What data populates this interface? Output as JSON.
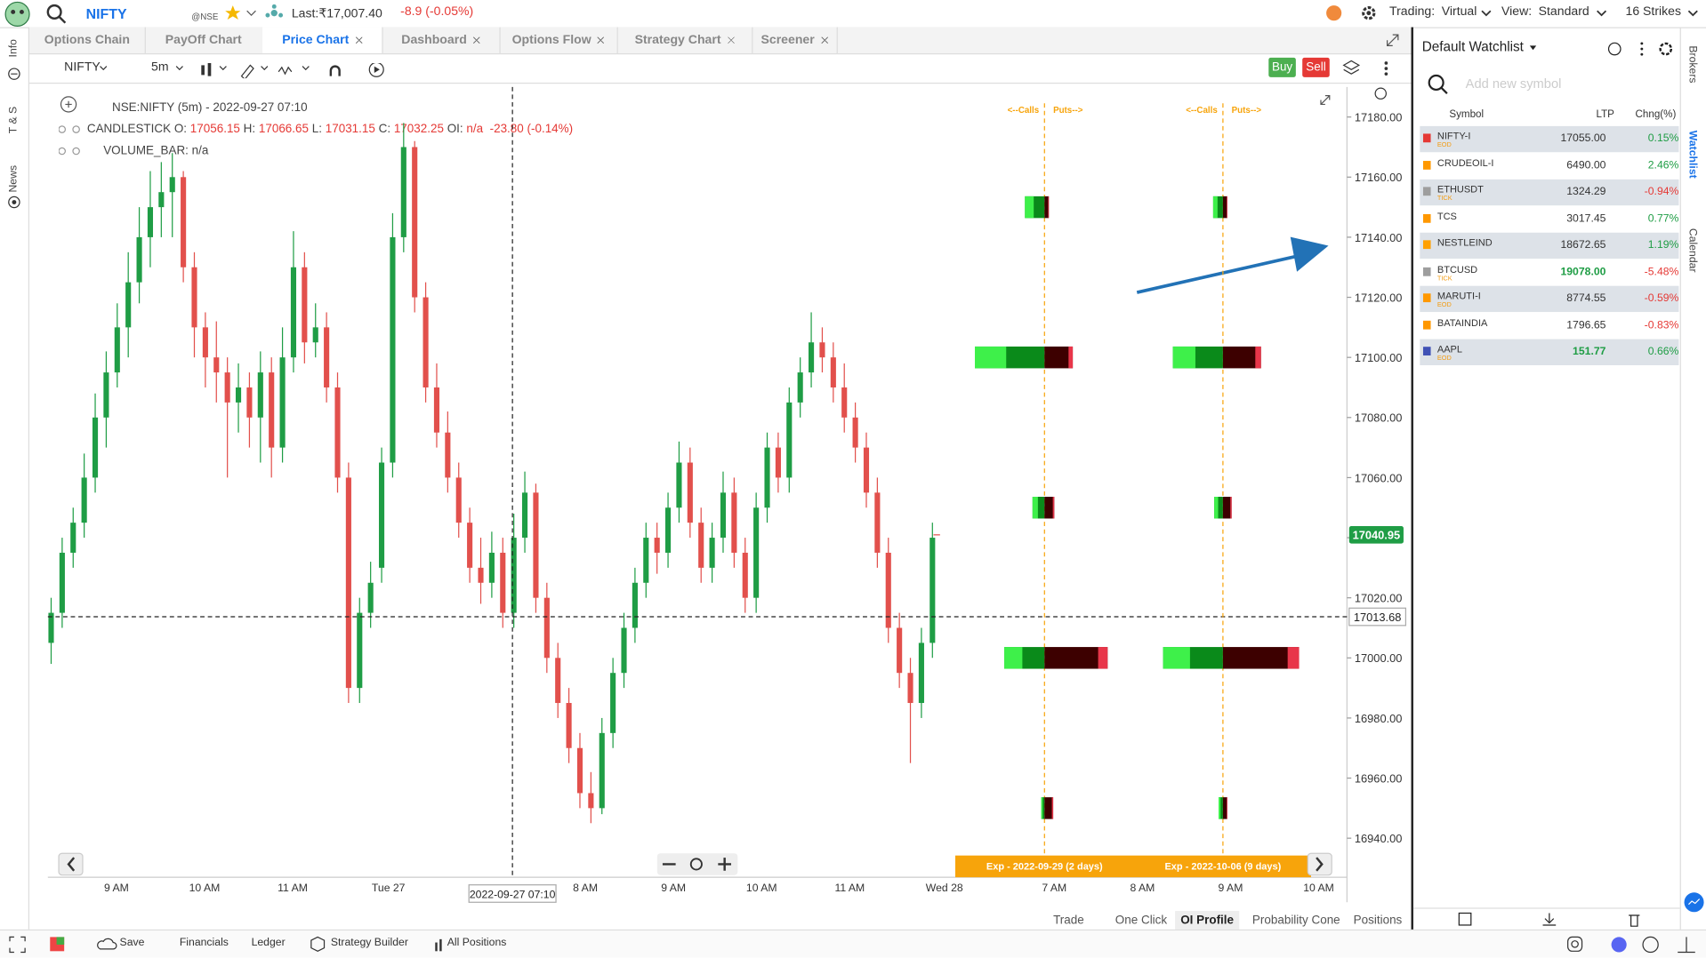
{
  "header": {
    "symbol": "NIFTY",
    "exchange": "@NSE",
    "last": "Last:₹17,007.40",
    "change": "-8.9 (-0.05%)",
    "trading_label": "Trading:",
    "trading": "Virtual",
    "view_label": "View:",
    "view": "Standard",
    "strikes": "16 Strikes"
  },
  "tabs": {
    "items": [
      "Options Chain",
      "PayOff Chart",
      "Price Chart",
      "Dashboard",
      "Options Flow",
      "Strategy Chart",
      "Screener"
    ],
    "active": 2
  },
  "left_sidebar": [
    "Info",
    "T & S",
    "News"
  ],
  "toolbar": {
    "symbol": "NIFTY",
    "interval": "5m",
    "buy": "Buy",
    "sell": "Sell"
  },
  "legend": {
    "title": "NSE:NIFTY (5m) - 2022-09-27 07:10",
    "series": "CANDLESTICK",
    "o_label": "O:",
    "o": "17056.15",
    "h_label": "H:",
    "h": "17066.65",
    "l_label": "L:",
    "l": "17031.15",
    "c_label": "C:",
    "c": "17032.25",
    "oi_label": "OI:",
    "oi": "n/a",
    "diff": "-23.80",
    "diff_pct": "(-0.14%)",
    "volume": "VOLUME_BAR:",
    "volume_value": "n/a"
  },
  "chart_data": {
    "type": "candlestick",
    "ylim": [
      16927,
      17190
    ],
    "yticks": [
      {
        "value": 17180,
        "label": "17180.00"
      },
      {
        "value": 17160,
        "label": "17160.00"
      },
      {
        "value": 17140,
        "label": "17140.00"
      },
      {
        "value": 17120,
        "label": "17120.00"
      },
      {
        "value": 17100,
        "label": "17100.00"
      },
      {
        "value": 17080,
        "label": "17080.00"
      },
      {
        "value": 17060,
        "label": "17060.00"
      },
      {
        "value": 17040,
        "label": "17040.00"
      },
      {
        "value": 17020,
        "label": "17020.00"
      },
      {
        "value": 17000,
        "label": "17000.00"
      },
      {
        "value": 16980,
        "label": "16980.00"
      },
      {
        "value": 16960,
        "label": "16960.00"
      },
      {
        "value": 16940,
        "label": "16940.00"
      }
    ],
    "xtick_labels": [
      "9 AM",
      "10 AM",
      "11 AM",
      "Tue 27",
      "8 AM",
      "9 AM",
      "10 AM",
      "11 AM",
      "Wed 28",
      "7 AM",
      "8 AM",
      "9 AM",
      "10 AM"
    ],
    "up_color": "#1f9d45",
    "down_color": "#e2504c",
    "last_price": {
      "value": 17040.95,
      "label": "17040.95"
    },
    "crosshair_price": {
      "value": 17013.68,
      "label": "17013.68"
    },
    "crosshair_time": "2022-09-27 07:10",
    "candles": [
      [
        17005,
        17020,
        16998,
        17015
      ],
      [
        17015,
        17040,
        17010,
        17035
      ],
      [
        17035,
        17050,
        17030,
        17045
      ],
      [
        17045,
        17068,
        17040,
        17060
      ],
      [
        17060,
        17088,
        17055,
        17080
      ],
      [
        17080,
        17102,
        17070,
        17095
      ],
      [
        17095,
        17118,
        17090,
        17110
      ],
      [
        17110,
        17135,
        17100,
        17125
      ],
      [
        17125,
        17150,
        17118,
        17140
      ],
      [
        17140,
        17162,
        17130,
        17150
      ],
      [
        17150,
        17165,
        17140,
        17155
      ],
      [
        17155,
        17168,
        17140,
        17160
      ],
      [
        17160,
        17162,
        17125,
        17130
      ],
      [
        17130,
        17135,
        17100,
        17110
      ],
      [
        17110,
        17115,
        17090,
        17100
      ],
      [
        17100,
        17112,
        17085,
        17095
      ],
      [
        17095,
        17100,
        17060,
        17085
      ],
      [
        17085,
        17098,
        17075,
        17090
      ],
      [
        17090,
        17095,
        17070,
        17080
      ],
      [
        17080,
        17102,
        17065,
        17095
      ],
      [
        17095,
        17100,
        17060,
        17070
      ],
      [
        17070,
        17110,
        17065,
        17100
      ],
      [
        17100,
        17142,
        17095,
        17130
      ],
      [
        17130,
        17135,
        17098,
        17105
      ],
      [
        17105,
        17118,
        17100,
        17110
      ],
      [
        17110,
        17115,
        17085,
        17090
      ],
      [
        17090,
        17095,
        17055,
        17060
      ],
      [
        17060,
        17065,
        16985,
        16990
      ],
      [
        16990,
        17020,
        16985,
        17015
      ],
      [
        17015,
        17032,
        17010,
        17025
      ],
      [
        17030,
        17070,
        17025,
        17065
      ],
      [
        17065,
        17148,
        17060,
        17140
      ],
      [
        17140,
        17178,
        17135,
        17170
      ],
      [
        17170,
        17172,
        17115,
        17120
      ],
      [
        17120,
        17125,
        17085,
        17090
      ],
      [
        17090,
        17098,
        17070,
        17075
      ],
      [
        17075,
        17082,
        17055,
        17060
      ],
      [
        17060,
        17065,
        17040,
        17045
      ],
      [
        17045,
        17050,
        17025,
        17030
      ],
      [
        17030,
        17040,
        17018,
        17025
      ],
      [
        17025,
        17042,
        17020,
        17035
      ],
      [
        17035,
        17040,
        17010,
        17015
      ],
      [
        17015,
        17048,
        17010,
        17040
      ],
      [
        17040,
        17062,
        17035,
        17055
      ],
      [
        17055,
        17058,
        17015,
        17020
      ],
      [
        17020,
        17025,
        16995,
        17000
      ],
      [
        17000,
        17005,
        16980,
        16985
      ],
      [
        16985,
        16990,
        16965,
        16970
      ],
      [
        16970,
        16975,
        16950,
        16955
      ],
      [
        16955,
        16962,
        16945,
        16950
      ],
      [
        16950,
        16980,
        16948,
        16975
      ],
      [
        16975,
        17000,
        16970,
        16995
      ],
      [
        16995,
        17015,
        16990,
        17010
      ],
      [
        17010,
        17030,
        17005,
        17025
      ],
      [
        17025,
        17045,
        17020,
        17040
      ],
      [
        17040,
        17045,
        17028,
        17035
      ],
      [
        17035,
        17055,
        17030,
        17050
      ],
      [
        17050,
        17072,
        17045,
        17065
      ],
      [
        17065,
        17070,
        17040,
        17045
      ],
      [
        17045,
        17050,
        17025,
        17030
      ],
      [
        17030,
        17045,
        17025,
        17040
      ],
      [
        17040,
        17062,
        17035,
        17055
      ],
      [
        17055,
        17060,
        17030,
        17035
      ],
      [
        17035,
        17040,
        17015,
        17020
      ],
      [
        17020,
        17055,
        17015,
        17050
      ],
      [
        17050,
        17075,
        17045,
        17070
      ],
      [
        17070,
        17075,
        17055,
        17060
      ],
      [
        17060,
        17090,
        17055,
        17085
      ],
      [
        17085,
        17100,
        17080,
        17095
      ],
      [
        17095,
        17115,
        17090,
        17105
      ],
      [
        17105,
        17110,
        17095,
        17100
      ],
      [
        17100,
        17105,
        17085,
        17090
      ],
      [
        17090,
        17098,
        17075,
        17080
      ],
      [
        17080,
        17085,
        17065,
        17070
      ],
      [
        17070,
        17075,
        17050,
        17055
      ],
      [
        17055,
        17060,
        17030,
        17035
      ],
      [
        17035,
        17040,
        17005,
        17010
      ],
      [
        17010,
        17015,
        16990,
        16995
      ],
      [
        16995,
        17000,
        16965,
        16985
      ],
      [
        16985,
        17010,
        16980,
        17005
      ],
      [
        17005,
        17045,
        17000,
        17040
      ]
    ],
    "oi_profile": {
      "calls_label": "<--Calls",
      "puts_label": "Puts-->",
      "strikes": [
        17150,
        17100,
        17050,
        17000,
        16950
      ],
      "expiries": [
        {
          "label": "Exp - 2022-09-29 (2 days)",
          "calls": [
            18,
            64,
            11,
            37,
            3
          ],
          "puts": [
            4,
            26,
            9,
            58,
            8
          ]
        },
        {
          "label": "Exp - 2022-10-06 (9 days)",
          "calls": [
            9,
            46,
            8,
            55,
            4
          ],
          "puts": [
            4,
            35,
            8,
            70,
            4
          ]
        }
      ]
    }
  },
  "bottom_tabs": {
    "items": [
      "Trade",
      "One Click",
      "OI Profile",
      "Probability Cone",
      "Positions"
    ],
    "active": 2
  },
  "footer": [
    "Save",
    "Financials",
    "Ledger",
    "Strategy Builder",
    "All Positions"
  ],
  "watchlist": {
    "title": "Default Watchlist",
    "placeholder": "Add new symbol",
    "columns": [
      "Symbol",
      "LTP",
      "Chng(%)"
    ],
    "rows": [
      {
        "symbol": "NIFTY-I",
        "tag": "EOD",
        "ltp": "17055.00",
        "change": "0.15%"
      },
      {
        "symbol": "CRUDEOIL-I",
        "ltp": "6490.00",
        "change": "2.46%"
      },
      {
        "symbol": "ETHUSDT",
        "tag": "TICK",
        "ltp": "1324.29",
        "change": "-0.94%"
      },
      {
        "symbol": "TCS",
        "ltp": "3017.45",
        "change": "0.77%"
      },
      {
        "symbol": "NESTLEIND",
        "ltp": "18672.65",
        "change": "1.19%"
      },
      {
        "symbol": "BTCUSD",
        "tag": "TICK",
        "ltp": "19078.00",
        "change": "-5.48%",
        "highlight": true
      },
      {
        "symbol": "MARUTI-I",
        "tag": "EOD",
        "ltp": "8774.55",
        "change": "-0.59%"
      },
      {
        "symbol": "BATAINDIA",
        "ltp": "1796.65",
        "change": "-0.83%"
      },
      {
        "symbol": "AAPL",
        "tag": "EOD",
        "ltp": "151.77",
        "change": "0.66%",
        "highlight": true
      }
    ]
  },
  "right_sidebar": [
    "Brokers",
    "Watchlist",
    "Calendar"
  ]
}
